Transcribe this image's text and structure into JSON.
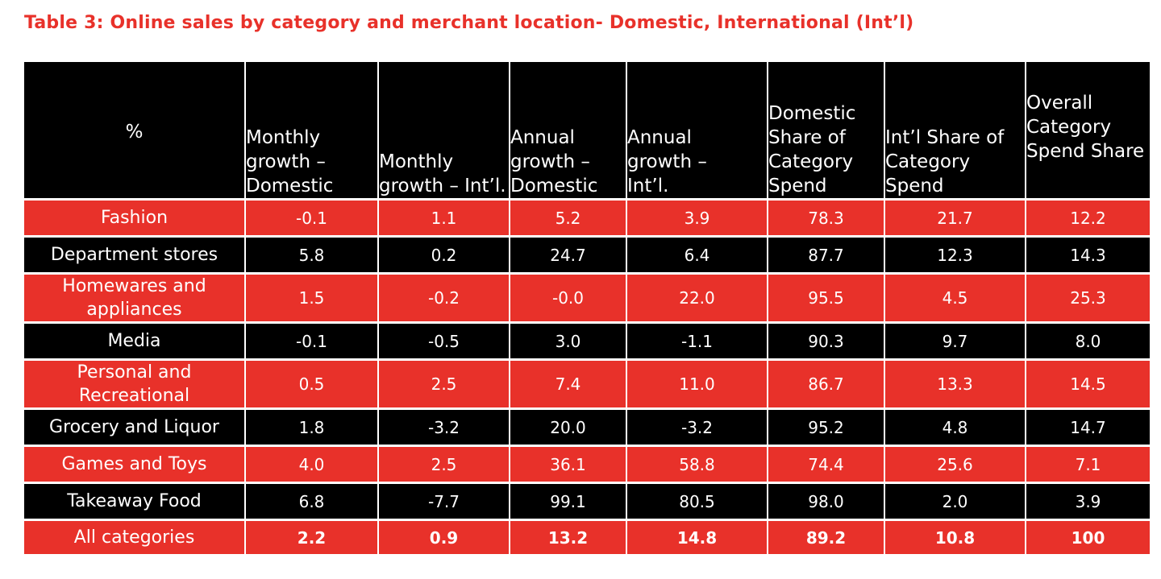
{
  "title": "Table 3: Online sales by category and merchant location- Domestic, International (Int’l)",
  "colors": {
    "accent": "#e8312a",
    "dark": "#000000",
    "text_on_fill": "#ffffff"
  },
  "chart_data": {
    "type": "table",
    "title": "Table 3: Online sales by category and merchant location- Domestic, International (Int’l)",
    "columns": [
      "%",
      "Monthly growth – Domestic",
      "Monthly growth – Int’l.",
      "Annual growth – Domestic",
      "Annual growth – Int’l.",
      "Domestic Share of Category Spend",
      "Int’l Share of Category Spend",
      "Overall Category Spend Share"
    ],
    "rows": [
      {
        "category": "Fashion",
        "values": [
          "-0.1",
          "1.1",
          "5.2",
          "3.9",
          "78.3",
          "21.7",
          "12.2"
        ]
      },
      {
        "category": "Department stores",
        "values": [
          "5.8",
          "0.2",
          "24.7",
          "6.4",
          "87.7",
          "12.3",
          "14.3"
        ]
      },
      {
        "category": "Homewares and appliances",
        "values": [
          "1.5",
          "-0.2",
          "-0.0",
          "22.0",
          "95.5",
          "4.5",
          "25.3"
        ]
      },
      {
        "category": "Media",
        "values": [
          "-0.1",
          "-0.5",
          "3.0",
          "-1.1",
          "90.3",
          "9.7",
          "8.0"
        ]
      },
      {
        "category": "Personal and Recreational",
        "values": [
          "0.5",
          "2.5",
          "7.4",
          "11.0",
          "86.7",
          "13.3",
          "14.5"
        ]
      },
      {
        "category": "Grocery and Liquor",
        "values": [
          "1.8",
          "-3.2",
          "20.0",
          "-3.2",
          "95.2",
          "4.8",
          "14.7"
        ]
      },
      {
        "category": "Games and Toys",
        "values": [
          "4.0",
          "2.5",
          "36.1",
          "58.8",
          "74.4",
          "25.6",
          "7.1"
        ]
      },
      {
        "category": "Takeaway Food",
        "values": [
          "6.8",
          "-7.7",
          "99.1",
          "80.5",
          "98.0",
          "2.0",
          "3.9"
        ]
      },
      {
        "category": "All categories",
        "values": [
          "2.2",
          "0.9",
          "13.2",
          "14.8",
          "89.2",
          "10.8",
          "100"
        ]
      }
    ]
  }
}
